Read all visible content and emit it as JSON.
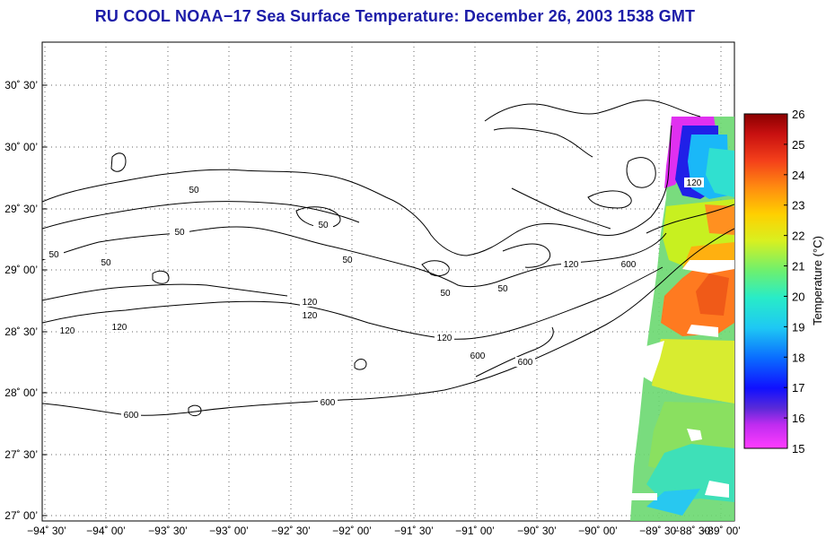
{
  "title": "RU COOL  NOAA−17  Sea Surface Temperature:  December 26, 2003 1538 GMT",
  "lat_labels": [
    "30˚ 30’",
    "30˚ 00’",
    "29˚ 30’",
    "29˚ 00’",
    "28˚ 30’",
    "28˚ 00’",
    "27˚ 30’",
    "27˚ 00’"
  ],
  "lon_labels": [
    "−94˚ 30’",
    "−94˚ 00’",
    "−93˚ 30’",
    "−93˚ 00’",
    "−92˚ 30’",
    "−92˚ 00’",
    "−91˚ 30’",
    "−91˚ 00’",
    "−90˚ 30’",
    "−90˚ 00’",
    "−89˚ 30’",
    "−89˚ 00’",
    "−88˚ 30’"
  ],
  "colorbar": {
    "label": "Temperature (°C)",
    "ticks": [
      "26",
      "25",
      "24",
      "23",
      "22",
      "21",
      "20",
      "19",
      "18",
      "17",
      "16",
      "15"
    ],
    "min": 15,
    "max": 26
  },
  "contour_labels": [
    "50",
    "50",
    "50",
    "50",
    "50",
    "50",
    "50",
    "50",
    "120",
    "120",
    "120",
    "120",
    "120",
    "120",
    "120",
    "600",
    "600",
    "600",
    "600",
    "600"
  ],
  "colors": {
    "title": "#1c1ca8",
    "contour": "#000000",
    "grid": "#555555"
  }
}
